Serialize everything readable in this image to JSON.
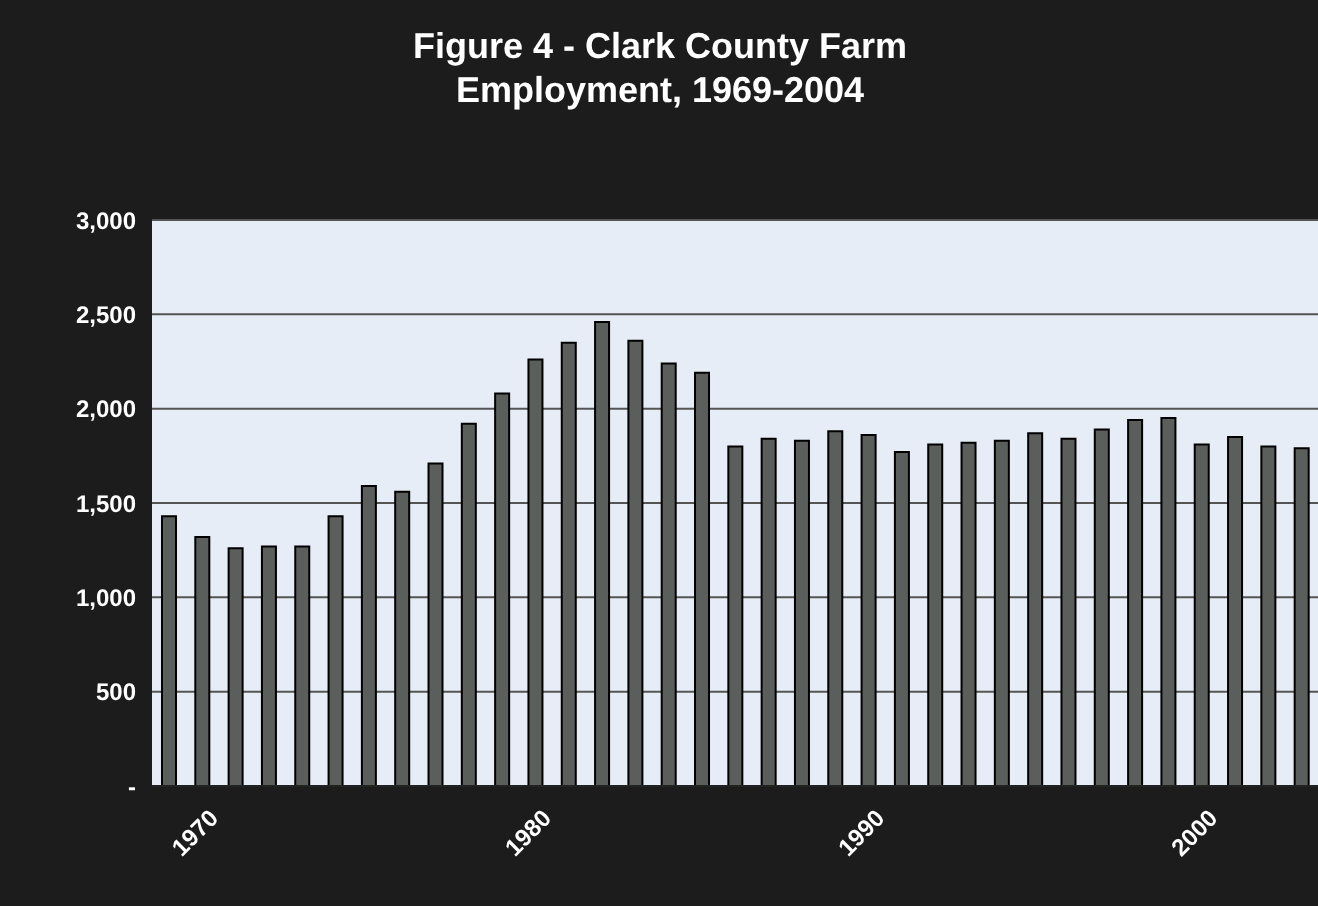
{
  "chart_data": {
    "type": "bar",
    "title": "Figure 4 - Clark County Farm Employment, 1969-2004",
    "categories": [
      null,
      "1970",
      null,
      null,
      null,
      null,
      null,
      null,
      null,
      null,
      null,
      "1980",
      null,
      null,
      null,
      null,
      null,
      null,
      null,
      null,
      null,
      "1990",
      null,
      null,
      null,
      null,
      null,
      null,
      null,
      null,
      null,
      "2000",
      null,
      null,
      null
    ],
    "values": [
      1430,
      1320,
      1260,
      1270,
      1270,
      1430,
      1590,
      1560,
      1710,
      1920,
      2080,
      2260,
      2350,
      2460,
      2360,
      2240,
      2190,
      1800,
      1840,
      1830,
      1880,
      1860,
      1770,
      1810,
      1820,
      1830,
      1870,
      1840,
      1890,
      1940,
      1950,
      1810,
      1850,
      1800,
      1790
    ],
    "color": "#5b5f5c",
    "ylim": [
      0,
      3000
    ],
    "yticks": [
      {
        "value": 0,
        "label": "-"
      },
      {
        "value": 500,
        "label": "500"
      },
      {
        "value": 1000,
        "label": "1,000"
      },
      {
        "value": 1500,
        "label": "1,500"
      },
      {
        "value": 2000,
        "label": "2,000"
      },
      {
        "value": 2500,
        "label": "2,500"
      },
      {
        "value": 3000,
        "label": "3,000"
      }
    ],
    "grid": "y"
  }
}
